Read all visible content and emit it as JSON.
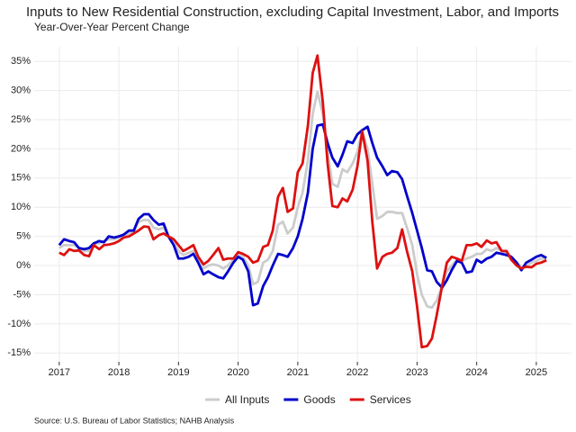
{
  "chart_data": {
    "type": "line",
    "title": "Inputs to New Residential Construction, excluding Capital Investment, Labor, and Imports",
    "subtitle": "Year-Over-Year Percent Change",
    "source": "Source: U.S. Bureau of Labor Statistics; NAHB Analysis",
    "x": [
      2017,
      2017.08,
      2017.17,
      2017.25,
      2017.33,
      2017.42,
      2017.5,
      2017.58,
      2017.67,
      2017.75,
      2017.83,
      2017.92,
      2018,
      2018.08,
      2018.17,
      2018.25,
      2018.33,
      2018.42,
      2018.5,
      2018.58,
      2018.67,
      2018.75,
      2018.83,
      2018.92,
      2019,
      2019.08,
      2019.17,
      2019.25,
      2019.33,
      2019.42,
      2019.5,
      2019.58,
      2019.67,
      2019.75,
      2019.83,
      2019.92,
      2020,
      2020.08,
      2020.17,
      2020.25,
      2020.33,
      2020.42,
      2020.5,
      2020.58,
      2020.67,
      2020.75,
      2020.83,
      2020.92,
      2021,
      2021.08,
      2021.17,
      2021.25,
      2021.33,
      2021.42,
      2021.5,
      2021.58,
      2021.67,
      2021.75,
      2021.83,
      2021.92,
      2022,
      2022.08,
      2022.17,
      2022.25,
      2022.33,
      2022.42,
      2022.5,
      2022.58,
      2022.67,
      2022.75,
      2022.83,
      2022.92,
      2023,
      2023.08,
      2023.17,
      2023.25,
      2023.33,
      2023.42,
      2023.5,
      2023.58,
      2023.67,
      2023.75,
      2023.83,
      2023.92,
      2024,
      2024.08,
      2024.17,
      2024.25,
      2024.33,
      2024.42,
      2024.5,
      2024.58,
      2024.67,
      2024.75,
      2024.83,
      2024.92,
      2025,
      2025.08,
      2025.17
    ],
    "series": [
      {
        "name": "All Inputs",
        "color": "#cccccc",
        "values": [
          3.0,
          3.5,
          3.5,
          3.5,
          3.0,
          2.5,
          2.5,
          3.8,
          3.8,
          4.2,
          4.5,
          4.5,
          4.8,
          5.0,
          5.5,
          5.8,
          7.5,
          7.8,
          7.8,
          6.5,
          6.2,
          6.5,
          5.0,
          4.0,
          2.5,
          1.8,
          2.2,
          2.5,
          1.0,
          -0.5,
          0.0,
          0.2,
          0.0,
          -0.5,
          0.0,
          1.0,
          2.0,
          1.5,
          0.0,
          -3.2,
          -2.8,
          0.5,
          1.0,
          2.5,
          7.0,
          7.5,
          5.5,
          6.5,
          10.0,
          12.5,
          18.0,
          26.0,
          29.8,
          26.0,
          19.5,
          14.0,
          13.5,
          16.5,
          16.0,
          17.5,
          19.5,
          23.0,
          20.0,
          14.0,
          8.0,
          8.5,
          9.2,
          9.2,
          9.0,
          9.0,
          6.5,
          3.5,
          -1.5,
          -5.0,
          -7.0,
          -7.2,
          -6.0,
          -3.5,
          -1.0,
          0.0,
          1.0,
          0.8,
          1.2,
          1.5,
          2.0,
          2.0,
          2.8,
          2.5,
          3.0,
          2.5,
          2.2,
          1.5,
          0.5,
          -0.2,
          0.0,
          0.5,
          0.8,
          1.2,
          1.2
        ]
      },
      {
        "name": "Goods",
        "color": "#0000cc",
        "values": [
          3.5,
          4.5,
          4.2,
          4.0,
          3.0,
          2.8,
          3.0,
          3.8,
          4.2,
          4.0,
          5.0,
          4.8,
          5.0,
          5.3,
          6.0,
          6.0,
          8.0,
          8.8,
          8.8,
          7.8,
          7.0,
          7.2,
          5.0,
          3.5,
          1.2,
          1.2,
          1.5,
          2.0,
          0.5,
          -1.5,
          -1.0,
          -1.5,
          -2.0,
          -2.2,
          -1.0,
          0.5,
          1.5,
          1.0,
          -1.0,
          -6.8,
          -6.5,
          -3.5,
          -2.0,
          0.0,
          2.0,
          1.8,
          1.5,
          3.0,
          5.0,
          8.0,
          12.5,
          20.0,
          24.0,
          24.2,
          21.0,
          18.5,
          17.0,
          19.0,
          21.3,
          21.0,
          22.5,
          23.2,
          23.8,
          21.0,
          18.5,
          17.0,
          15.5,
          16.2,
          16.0,
          14.8,
          12.0,
          9.0,
          6.0,
          3.0,
          -0.8,
          -1.0,
          -2.8,
          -3.8,
          -2.5,
          -0.8,
          0.8,
          0.5,
          -1.2,
          -1.0,
          1.0,
          0.5,
          1.2,
          1.5,
          2.2,
          2.0,
          1.8,
          1.5,
          0.5,
          -0.8,
          0.5,
          1.0,
          1.5,
          1.8,
          1.3
        ]
      },
      {
        "name": "Services",
        "color": "#dd1111",
        "values": [
          2.2,
          1.8,
          2.8,
          2.5,
          2.6,
          1.8,
          1.6,
          3.5,
          2.8,
          3.5,
          3.6,
          3.8,
          4.2,
          4.8,
          5.0,
          5.5,
          6.0,
          6.7,
          6.6,
          4.5,
          5.2,
          5.5,
          5.0,
          4.5,
          3.5,
          2.5,
          3.0,
          3.5,
          1.5,
          0.2,
          0.8,
          1.8,
          3.0,
          1.0,
          1.2,
          1.2,
          2.3,
          2.0,
          1.5,
          0.5,
          0.8,
          3.2,
          3.5,
          6.0,
          11.8,
          13.3,
          9.2,
          9.8,
          16.0,
          17.5,
          24.0,
          33.0,
          36.0,
          28.0,
          17.5,
          10.2,
          10.0,
          11.5,
          11.0,
          13.0,
          17.0,
          23.0,
          18.0,
          7.5,
          -0.5,
          1.5,
          2.0,
          2.2,
          3.0,
          6.2,
          2.5,
          -1.0,
          -7.0,
          -14.0,
          -13.8,
          -12.5,
          -8.5,
          -3.5,
          0.5,
          1.5,
          1.2,
          0.8,
          3.5,
          3.5,
          3.8,
          3.2,
          4.3,
          3.8,
          4.0,
          2.5,
          2.5,
          1.0,
          0.0,
          -0.5,
          -0.2,
          -0.3,
          0.3,
          0.5,
          0.9
        ]
      }
    ],
    "xlim": [
      2016.58,
      2025.59
    ],
    "xticks": [
      2017,
      2018,
      2019,
      2020,
      2021,
      2022,
      2023,
      2024,
      2025
    ],
    "ylim": [
      -16.5,
      37.5
    ],
    "yticks": [
      {
        "value": -15,
        "label": "-15%"
      },
      {
        "value": -10,
        "label": "-10%"
      },
      {
        "value": -5,
        "label": "-5%"
      },
      {
        "value": 0,
        "label": "0%"
      },
      {
        "value": 5,
        "label": "5%"
      },
      {
        "value": 10,
        "label": "10%"
      },
      {
        "value": 15,
        "label": "15%"
      },
      {
        "value": 20,
        "label": "20%"
      },
      {
        "value": 25,
        "label": "25%"
      },
      {
        "value": 30,
        "label": "30%"
      },
      {
        "value": 35,
        "label": "35%"
      }
    ],
    "grid": true,
    "legend": "bottom"
  }
}
